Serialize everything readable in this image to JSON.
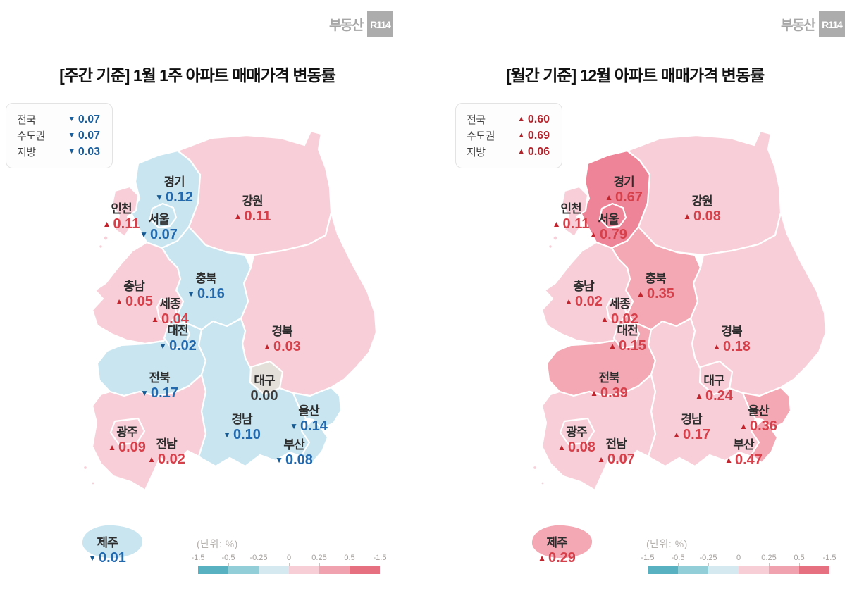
{
  "brand": {
    "prefix": "부동산",
    "badge": "R114"
  },
  "unit_label": "(단위:  %)",
  "icons": {
    "up": "▲",
    "down": "▼"
  },
  "colors": {
    "up_text": "#d6404b",
    "up_triangle": "#c1242d",
    "down_text": "#2369ae",
    "down_triangle": "#175a92",
    "flat_text": "#3d3d3d",
    "summary_up": "#b2242c",
    "summary_down": "#1a5f9e",
    "bins": {
      "strong_down": "#57b1c0",
      "mid_down": "#92ced7",
      "light_down": "#c8e5f0",
      "zero": "#e3e0da",
      "light_up": "#f8cfd8",
      "mid_up": "#f3a8b4",
      "strong_up": "#ee8498"
    },
    "scale_segments": [
      "#57b1c0",
      "#92ced7",
      "#d4eaf0",
      "#f7ced6",
      "#f0a2af",
      "#e6707f"
    ]
  },
  "scale": {
    "labels": [
      "-1.5",
      "-0.5",
      "-0.25",
      "0",
      "0.25",
      "0.5",
      "-1.5"
    ]
  },
  "panels": [
    {
      "id": "weekly",
      "title": "[주간 기준] 1월 1주 아파트 매매가격 변동률",
      "summary": [
        {
          "label": "전국",
          "direction": "down",
          "value": "0.07"
        },
        {
          "label": "수도권",
          "direction": "down",
          "value": "0.07"
        },
        {
          "label": "지방",
          "direction": "down",
          "value": "0.03"
        }
      ],
      "regions": [
        {
          "id": "gyeonggi",
          "name": "경기",
          "direction": "down",
          "value": "0.12"
        },
        {
          "id": "gangwon",
          "name": "강원",
          "direction": "up",
          "value": "0.11"
        },
        {
          "id": "incheon",
          "name": "인천",
          "direction": "up",
          "value": "0.11"
        },
        {
          "id": "seoul",
          "name": "서울",
          "direction": "down",
          "value": "0.07"
        },
        {
          "id": "chungbuk",
          "name": "충북",
          "direction": "down",
          "value": "0.16"
        },
        {
          "id": "chungnam",
          "name": "충남",
          "direction": "up",
          "value": "0.05"
        },
        {
          "id": "sejong",
          "name": "세종",
          "direction": "up",
          "value": "0.04"
        },
        {
          "id": "daejeon",
          "name": "대전",
          "direction": "down",
          "value": "0.02"
        },
        {
          "id": "gyeongbuk",
          "name": "경북",
          "direction": "up",
          "value": "0.03"
        },
        {
          "id": "jeonbuk",
          "name": "전북",
          "direction": "down",
          "value": "0.17"
        },
        {
          "id": "daegu",
          "name": "대구",
          "direction": "flat",
          "value": "0.00"
        },
        {
          "id": "gyeongnam",
          "name": "경남",
          "direction": "down",
          "value": "0.10"
        },
        {
          "id": "ulsan",
          "name": "울산",
          "direction": "down",
          "value": "0.14"
        },
        {
          "id": "gwangju",
          "name": "광주",
          "direction": "up",
          "value": "0.09"
        },
        {
          "id": "jeonnam",
          "name": "전남",
          "direction": "up",
          "value": "0.02"
        },
        {
          "id": "busan",
          "name": "부산",
          "direction": "down",
          "value": "0.08"
        },
        {
          "id": "jeju",
          "name": "제주",
          "direction": "down",
          "value": "0.01"
        }
      ]
    },
    {
      "id": "monthly",
      "title": "[월간 기준] 12월 아파트 매매가격 변동률",
      "summary": [
        {
          "label": "전국",
          "direction": "up",
          "value": "0.60"
        },
        {
          "label": "수도권",
          "direction": "up",
          "value": "0.69"
        },
        {
          "label": "지방",
          "direction": "up",
          "value": "0.06"
        }
      ],
      "regions": [
        {
          "id": "gyeonggi",
          "name": "경기",
          "direction": "up",
          "value": "0.67"
        },
        {
          "id": "gangwon",
          "name": "강원",
          "direction": "up",
          "value": "0.08"
        },
        {
          "id": "incheon",
          "name": "인천",
          "direction": "up",
          "value": "0.11"
        },
        {
          "id": "seoul",
          "name": "서울",
          "direction": "up",
          "value": "0.79"
        },
        {
          "id": "chungbuk",
          "name": "충북",
          "direction": "up",
          "value": "0.35"
        },
        {
          "id": "chungnam",
          "name": "충남",
          "direction": "up",
          "value": "0.02"
        },
        {
          "id": "sejong",
          "name": "세종",
          "direction": "up",
          "value": "0.02"
        },
        {
          "id": "daejeon",
          "name": "대전",
          "direction": "up",
          "value": "0.15"
        },
        {
          "id": "gyeongbuk",
          "name": "경북",
          "direction": "up",
          "value": "0.18"
        },
        {
          "id": "jeonbuk",
          "name": "전북",
          "direction": "up",
          "value": "0.39"
        },
        {
          "id": "daegu",
          "name": "대구",
          "direction": "up",
          "value": "0.24"
        },
        {
          "id": "gyeongnam",
          "name": "경남",
          "direction": "up",
          "value": "0.17"
        },
        {
          "id": "ulsan",
          "name": "울산",
          "direction": "up",
          "value": "0.36"
        },
        {
          "id": "gwangju",
          "name": "광주",
          "direction": "up",
          "value": "0.08"
        },
        {
          "id": "jeonnam",
          "name": "전남",
          "direction": "up",
          "value": "0.07"
        },
        {
          "id": "busan",
          "name": "부산",
          "direction": "up",
          "value": "0.47"
        },
        {
          "id": "jeju",
          "name": "제주",
          "direction": "up",
          "value": "0.29"
        }
      ]
    }
  ],
  "chart_data": [
    {
      "type": "choropleth-map",
      "title": "[주간 기준] 1월 1주 아파트 매매가격 변동률",
      "unit": "%",
      "aggregates": {
        "전국": -0.07,
        "수도권": -0.07,
        "지방": -0.03
      },
      "regions": [
        {
          "name": "경기",
          "change": -0.12
        },
        {
          "name": "강원",
          "change": 0.11
        },
        {
          "name": "인천",
          "change": 0.11
        },
        {
          "name": "서울",
          "change": -0.07
        },
        {
          "name": "충북",
          "change": -0.16
        },
        {
          "name": "충남",
          "change": 0.05
        },
        {
          "name": "세종",
          "change": 0.04
        },
        {
          "name": "대전",
          "change": -0.02
        },
        {
          "name": "경북",
          "change": 0.03
        },
        {
          "name": "전북",
          "change": -0.17
        },
        {
          "name": "대구",
          "change": 0.0
        },
        {
          "name": "경남",
          "change": -0.1
        },
        {
          "name": "울산",
          "change": -0.14
        },
        {
          "name": "광주",
          "change": 0.09
        },
        {
          "name": "전남",
          "change": 0.02
        },
        {
          "name": "부산",
          "change": -0.08
        },
        {
          "name": "제주",
          "change": -0.01
        }
      ],
      "color_scale_ticks": [
        "-1.5",
        "-0.5",
        "-0.25",
        "0",
        "0.25",
        "0.5",
        "-1.5"
      ],
      "legend_position": "bottom-center"
    },
    {
      "type": "choropleth-map",
      "title": "[월간 기준] 12월 아파트 매매가격 변동률",
      "unit": "%",
      "aggregates": {
        "전국": 0.6,
        "수도권": 0.69,
        "지방": 0.06
      },
      "regions": [
        {
          "name": "경기",
          "change": 0.67
        },
        {
          "name": "강원",
          "change": 0.08
        },
        {
          "name": "인천",
          "change": 0.11
        },
        {
          "name": "서울",
          "change": 0.79
        },
        {
          "name": "충북",
          "change": 0.35
        },
        {
          "name": "충남",
          "change": 0.02
        },
        {
          "name": "세종",
          "change": 0.02
        },
        {
          "name": "대전",
          "change": 0.15
        },
        {
          "name": "경북",
          "change": 0.18
        },
        {
          "name": "전북",
          "change": 0.39
        },
        {
          "name": "대구",
          "change": 0.24
        },
        {
          "name": "경남",
          "change": 0.17
        },
        {
          "name": "울산",
          "change": 0.36
        },
        {
          "name": "광주",
          "change": 0.08
        },
        {
          "name": "전남",
          "change": 0.07
        },
        {
          "name": "부산",
          "change": 0.47
        },
        {
          "name": "제주",
          "change": 0.29
        }
      ],
      "color_scale_ticks": [
        "-1.5",
        "-0.5",
        "-0.25",
        "0",
        "0.25",
        "0.5",
        "-1.5"
      ],
      "legend_position": "bottom-center"
    }
  ]
}
